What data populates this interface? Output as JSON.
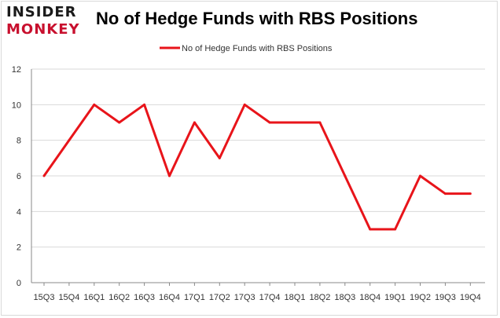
{
  "logo": {
    "line1": "INSIDER",
    "line2": "MONKEY"
  },
  "colors": {
    "line": "#e8141a",
    "grid": "#d9d9d9",
    "axis": "#888888",
    "logo_red": "#c8102e"
  },
  "chart_data": {
    "type": "line",
    "title": "No of Hedge Funds with RBS Positions",
    "legend_position": "top-center",
    "grid": true,
    "xlabel": "",
    "ylabel": "",
    "ylim": [
      0,
      12
    ],
    "yticks": [
      0,
      2,
      4,
      6,
      8,
      10,
      12
    ],
    "categories": [
      "15Q3",
      "15Q4",
      "16Q1",
      "16Q2",
      "16Q3",
      "16Q4",
      "17Q1",
      "17Q2",
      "17Q3",
      "17Q4",
      "18Q1",
      "18Q2",
      "18Q3",
      "18Q4",
      "19Q1",
      "19Q2",
      "19Q3",
      "19Q4"
    ],
    "series": [
      {
        "name": "No of Hedge Funds with RBS Positions",
        "values": [
          6,
          8,
          10,
          9,
          10,
          6,
          9,
          7,
          10,
          9,
          9,
          9,
          6,
          3,
          3,
          6,
          5,
          5
        ]
      }
    ]
  }
}
